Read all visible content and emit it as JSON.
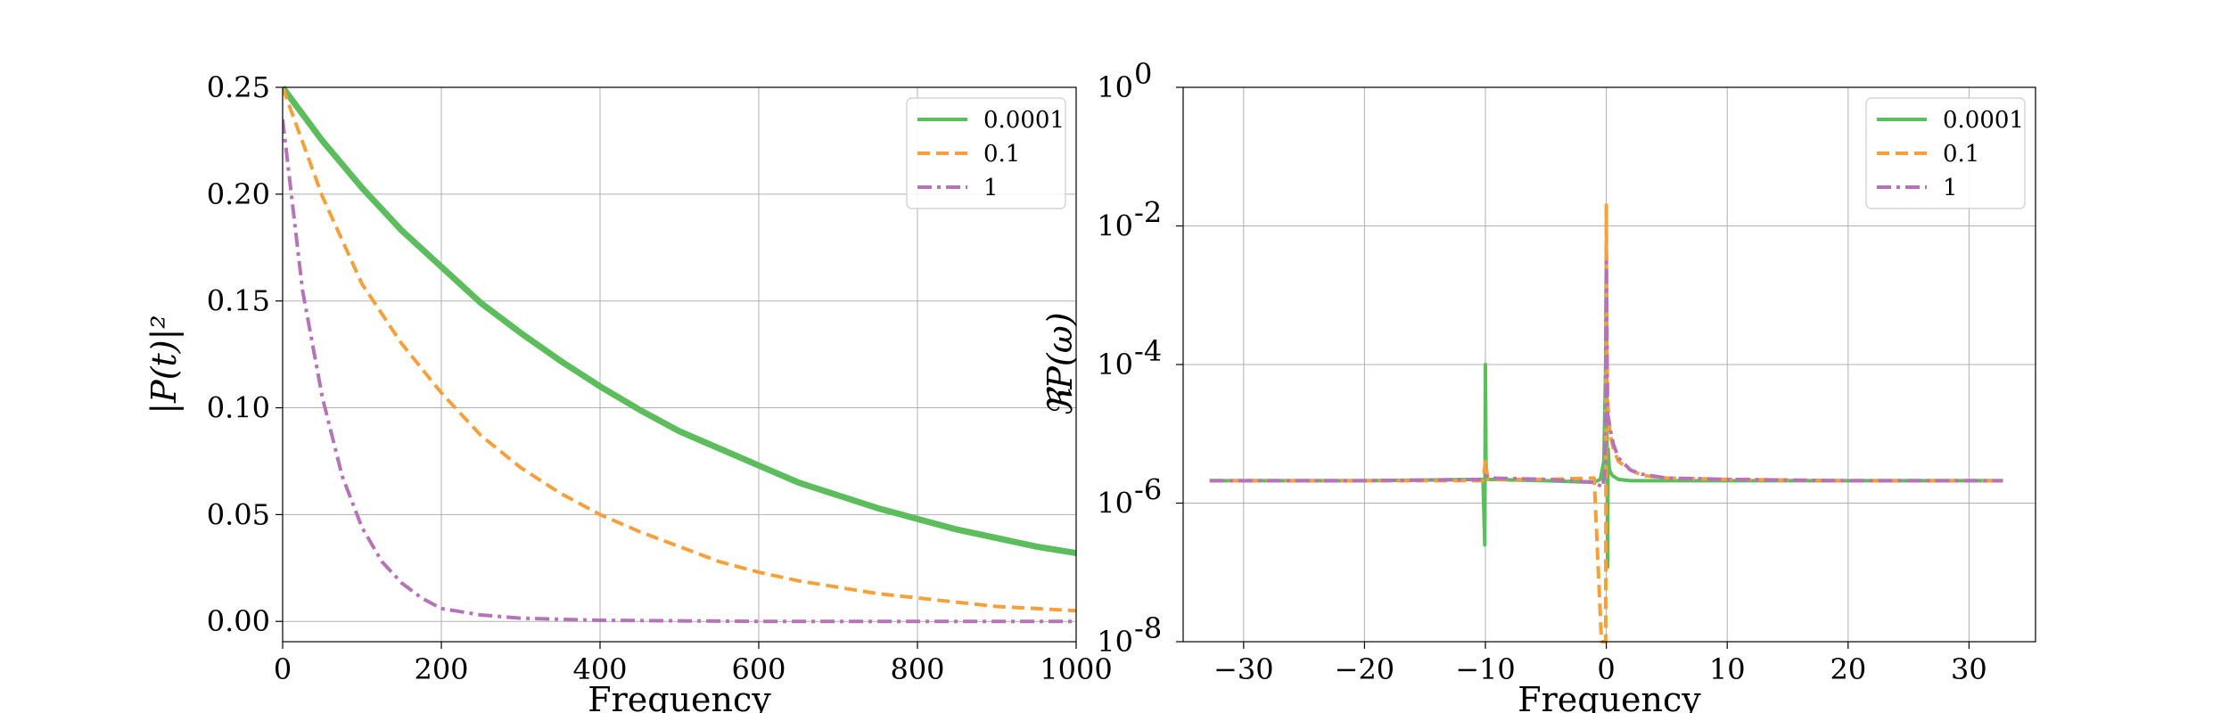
{
  "chart_data": [
    {
      "type": "line",
      "xlabel": "Frequency",
      "ylabel": "|P(t)|²",
      "xlim": [
        0,
        1000
      ],
      "ylim": [
        -0.0095,
        0.25
      ],
      "xticks": [
        0,
        200,
        400,
        600,
        800,
        1000
      ],
      "xtick_labels": [
        "0",
        "200",
        "400",
        "600",
        "800",
        "1000"
      ],
      "yticks": [
        0.0,
        0.05,
        0.1,
        0.15,
        0.2,
        0.25
      ],
      "ytick_labels": [
        "0.00",
        "0.05",
        "0.10",
        "0.15",
        "0.20",
        "0.25"
      ],
      "grid": true,
      "legend_position": "top-right",
      "series": [
        {
          "name": "0.0001",
          "color": "#5cbd5c",
          "style": "solid",
          "x": [
            0,
            50,
            100,
            150,
            200,
            250,
            300,
            350,
            400,
            450,
            500,
            550,
            600,
            650,
            700,
            750,
            800,
            850,
            900,
            950,
            1000
          ],
          "y": [
            0.25,
            0.225,
            0.203,
            0.183,
            0.166,
            0.149,
            0.135,
            0.122,
            0.11,
            0.099,
            0.089,
            0.081,
            0.073,
            0.065,
            0.059,
            0.053,
            0.048,
            0.043,
            0.039,
            0.035,
            0.032
          ]
        },
        {
          "name": "0.1",
          "color": "#f6a03c",
          "style": "dashed",
          "x": [
            0,
            50,
            100,
            150,
            200,
            250,
            300,
            350,
            400,
            450,
            500,
            550,
            600,
            650,
            700,
            750,
            800,
            850,
            900,
            950,
            1000
          ],
          "y": [
            0.25,
            0.199,
            0.158,
            0.13,
            0.107,
            0.087,
            0.072,
            0.06,
            0.05,
            0.042,
            0.035,
            0.028,
            0.023,
            0.019,
            0.016,
            0.013,
            0.011,
            0.009,
            0.007,
            0.006,
            0.005
          ]
        },
        {
          "name": "1",
          "color": "#b574b8",
          "style": "dashdot",
          "x": [
            0,
            25,
            50,
            75,
            100,
            125,
            150,
            175,
            200,
            250,
            300,
            400,
            600,
            800,
            1000
          ],
          "y": [
            0.235,
            0.155,
            0.105,
            0.068,
            0.044,
            0.028,
            0.018,
            0.011,
            0.006,
            0.003,
            0.0015,
            0.0005,
            0.0,
            0.0,
            0.0
          ]
        }
      ]
    },
    {
      "type": "line",
      "xlabel": "Frequency",
      "ylabel": "ℜP(ω)",
      "yscale": "log",
      "xlim": [
        -35,
        35.5
      ],
      "ylim": [
        1e-08,
        1
      ],
      "xticks": [
        -30,
        -20,
        -10,
        0,
        10,
        20,
        30
      ],
      "xtick_labels": [
        "−30",
        "−20",
        "−10",
        "0",
        "10",
        "20",
        "30"
      ],
      "yticks": [
        1e-08,
        1e-06,
        0.0001,
        0.01,
        1
      ],
      "ytick_labels": [
        {
          "base": "10",
          "exp": "-8"
        },
        {
          "base": "10",
          "exp": "-6"
        },
        {
          "base": "10",
          "exp": "-4"
        },
        {
          "base": "10",
          "exp": "-2"
        },
        {
          "base": "10",
          "exp": "0"
        }
      ],
      "grid": true,
      "legend_position": "top-right",
      "series": [
        {
          "name": "0.0001",
          "color": "#5cbd5c",
          "style": "solid",
          "x": [
            -32.8,
            -20,
            -10.2,
            -10.05,
            -10.0,
            -9.95,
            -9.8,
            -5,
            -1,
            -0.5,
            -0.2,
            -0.05,
            0.0,
            0.05,
            0.1,
            0.15,
            0.25,
            0.5,
            1,
            2,
            5,
            10,
            20,
            32.8
          ],
          "y": [
            2.1e-06,
            2.1e-06,
            2.2e-06,
            2.5e-07,
            0.0001,
            3e-06,
            2.2e-06,
            2.1e-06,
            2e-06,
            2.2e-06,
            4e-06,
            0.0001,
            0.004,
            2e-05,
            1.2e-07,
            6e-06,
            3e-06,
            2.5e-06,
            2.2e-06,
            2.1e-06,
            2.1e-06,
            2.1e-06,
            2.1e-06,
            2.1e-06
          ]
        },
        {
          "name": "0.1",
          "color": "#f6a03c",
          "style": "dashed",
          "x": [
            -32.8,
            -20,
            -10.2,
            -10.0,
            -9.8,
            -5,
            -1,
            -0.4,
            -0.2,
            -0.1,
            -0.05,
            0.0,
            0.05,
            0.1,
            0.3,
            0.6,
            1,
            2,
            3,
            5,
            10,
            20,
            32.8
          ],
          "y": [
            2.1e-06,
            2.1e-06,
            2.1e-06,
            4e-06,
            2.2e-06,
            2.2e-06,
            2.3e-06,
            1e-08,
            1e-08,
            1e-08,
            1e-08,
            0.02,
            0.0002,
            3e-05,
            1e-05,
            6e-06,
            4e-06,
            3e-06,
            2.5e-06,
            2.3e-06,
            2.2e-06,
            2.1e-06,
            2.1e-06
          ]
        },
        {
          "name": "1",
          "color": "#b574b8",
          "style": "dashdot",
          "x": [
            -32.8,
            -20,
            -10.5,
            -10.0,
            -9.5,
            -5,
            -1,
            -0.3,
            -0.1,
            0.0,
            0.1,
            0.3,
            0.6,
            1,
            2,
            3,
            5,
            10,
            20,
            32.8
          ],
          "y": [
            2.1e-06,
            2.1e-06,
            2.2e-06,
            2.5e-06,
            2.3e-06,
            2.2e-06,
            2e-06,
            1.7e-06,
            3e-06,
            0.003,
            2e-05,
            1.2e-05,
            7e-06,
            4.5e-06,
            3e-06,
            2.6e-06,
            2.3e-06,
            2.2e-06,
            2.1e-06,
            2.1e-06
          ]
        }
      ]
    }
  ]
}
